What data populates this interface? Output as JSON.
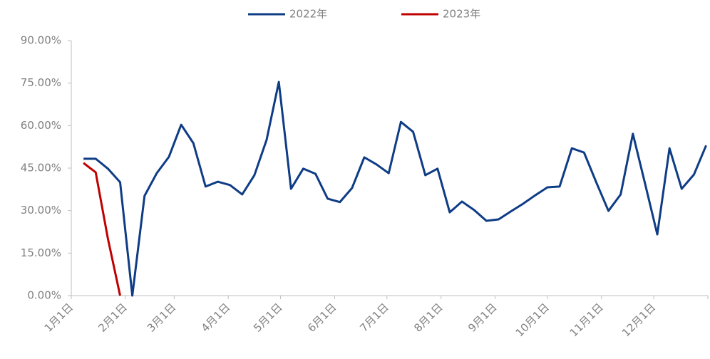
{
  "chart_data": {
    "type": "line",
    "x": [
      7,
      14,
      21,
      28,
      35,
      42,
      49,
      56,
      63,
      70,
      77,
      84,
      91,
      98,
      105,
      112,
      119,
      126,
      133,
      140,
      147,
      154,
      161,
      168,
      175,
      182,
      189,
      196,
      203,
      210,
      217,
      224,
      231,
      238,
      245,
      252,
      259,
      266,
      273,
      280,
      287,
      294,
      301,
      308,
      315,
      322,
      329,
      336,
      343,
      350,
      357,
      364
    ],
    "series": [
      {
        "name": "2022年",
        "color": "#0e3c85",
        "values": [
          48.3,
          48.3,
          44.8,
          40.0,
          0,
          35.2,
          43.2,
          49.0,
          60.3,
          53.8,
          38.5,
          40.2,
          39.0,
          35.7,
          42.5,
          55.0,
          75.4,
          37.7,
          44.8,
          43.0,
          34.2,
          33.0,
          38.0,
          48.8,
          46.3,
          43.2,
          61.3,
          57.8,
          42.5,
          44.8,
          29.4,
          33.2,
          30.2,
          26.4,
          26.9,
          29.7,
          32.4,
          35.4,
          38.2,
          38.5,
          52.0,
          50.5,
          40.0,
          29.9,
          35.7,
          57.1,
          39.5,
          21.6,
          52.0,
          37.7,
          42.7,
          53.0
        ]
      },
      {
        "name": "2023年",
        "color": "#c00000",
        "values": [
          46.8,
          43.5,
          20.1,
          0,
          null,
          null,
          null,
          null,
          null,
          null,
          null,
          null,
          null,
          null,
          null,
          null,
          null,
          null,
          null,
          null,
          null,
          null,
          null,
          null,
          null,
          null,
          null,
          null,
          null,
          null,
          null,
          null,
          null,
          null,
          null,
          null,
          null,
          null,
          null,
          null,
          null,
          null,
          null,
          null,
          null,
          null,
          null,
          null,
          null,
          null,
          null,
          null
        ]
      }
    ],
    "xlim": [
      0,
      365
    ],
    "xticks": [
      {
        "value": 0,
        "label": "1月1日"
      },
      {
        "value": 31,
        "label": "2月1日"
      },
      {
        "value": 59,
        "label": "3月1日"
      },
      {
        "value": 90,
        "label": "4月1日"
      },
      {
        "value": 120,
        "label": "5月1日"
      },
      {
        "value": 151,
        "label": "6月1日"
      },
      {
        "value": 181,
        "label": "7月1日"
      },
      {
        "value": 212,
        "label": "8月1日"
      },
      {
        "value": 243,
        "label": "9月1日"
      },
      {
        "value": 273,
        "label": "10月1日"
      },
      {
        "value": 304,
        "label": "11月1日"
      },
      {
        "value": 334,
        "label": "12月1日"
      },
      {
        "value": 365,
        "label": ""
      }
    ],
    "ylim": [
      0,
      90
    ],
    "yticks": [
      {
        "value": 0,
        "label": "0.00%"
      },
      {
        "value": 15,
        "label": "15.00%"
      },
      {
        "value": 30,
        "label": "30.00%"
      },
      {
        "value": 45,
        "label": "45.00%"
      },
      {
        "value": 60,
        "label": "60.00%"
      },
      {
        "value": 75,
        "label": "75.00%"
      },
      {
        "value": 90,
        "label": "90.00%"
      }
    ],
    "legend": "top"
  }
}
